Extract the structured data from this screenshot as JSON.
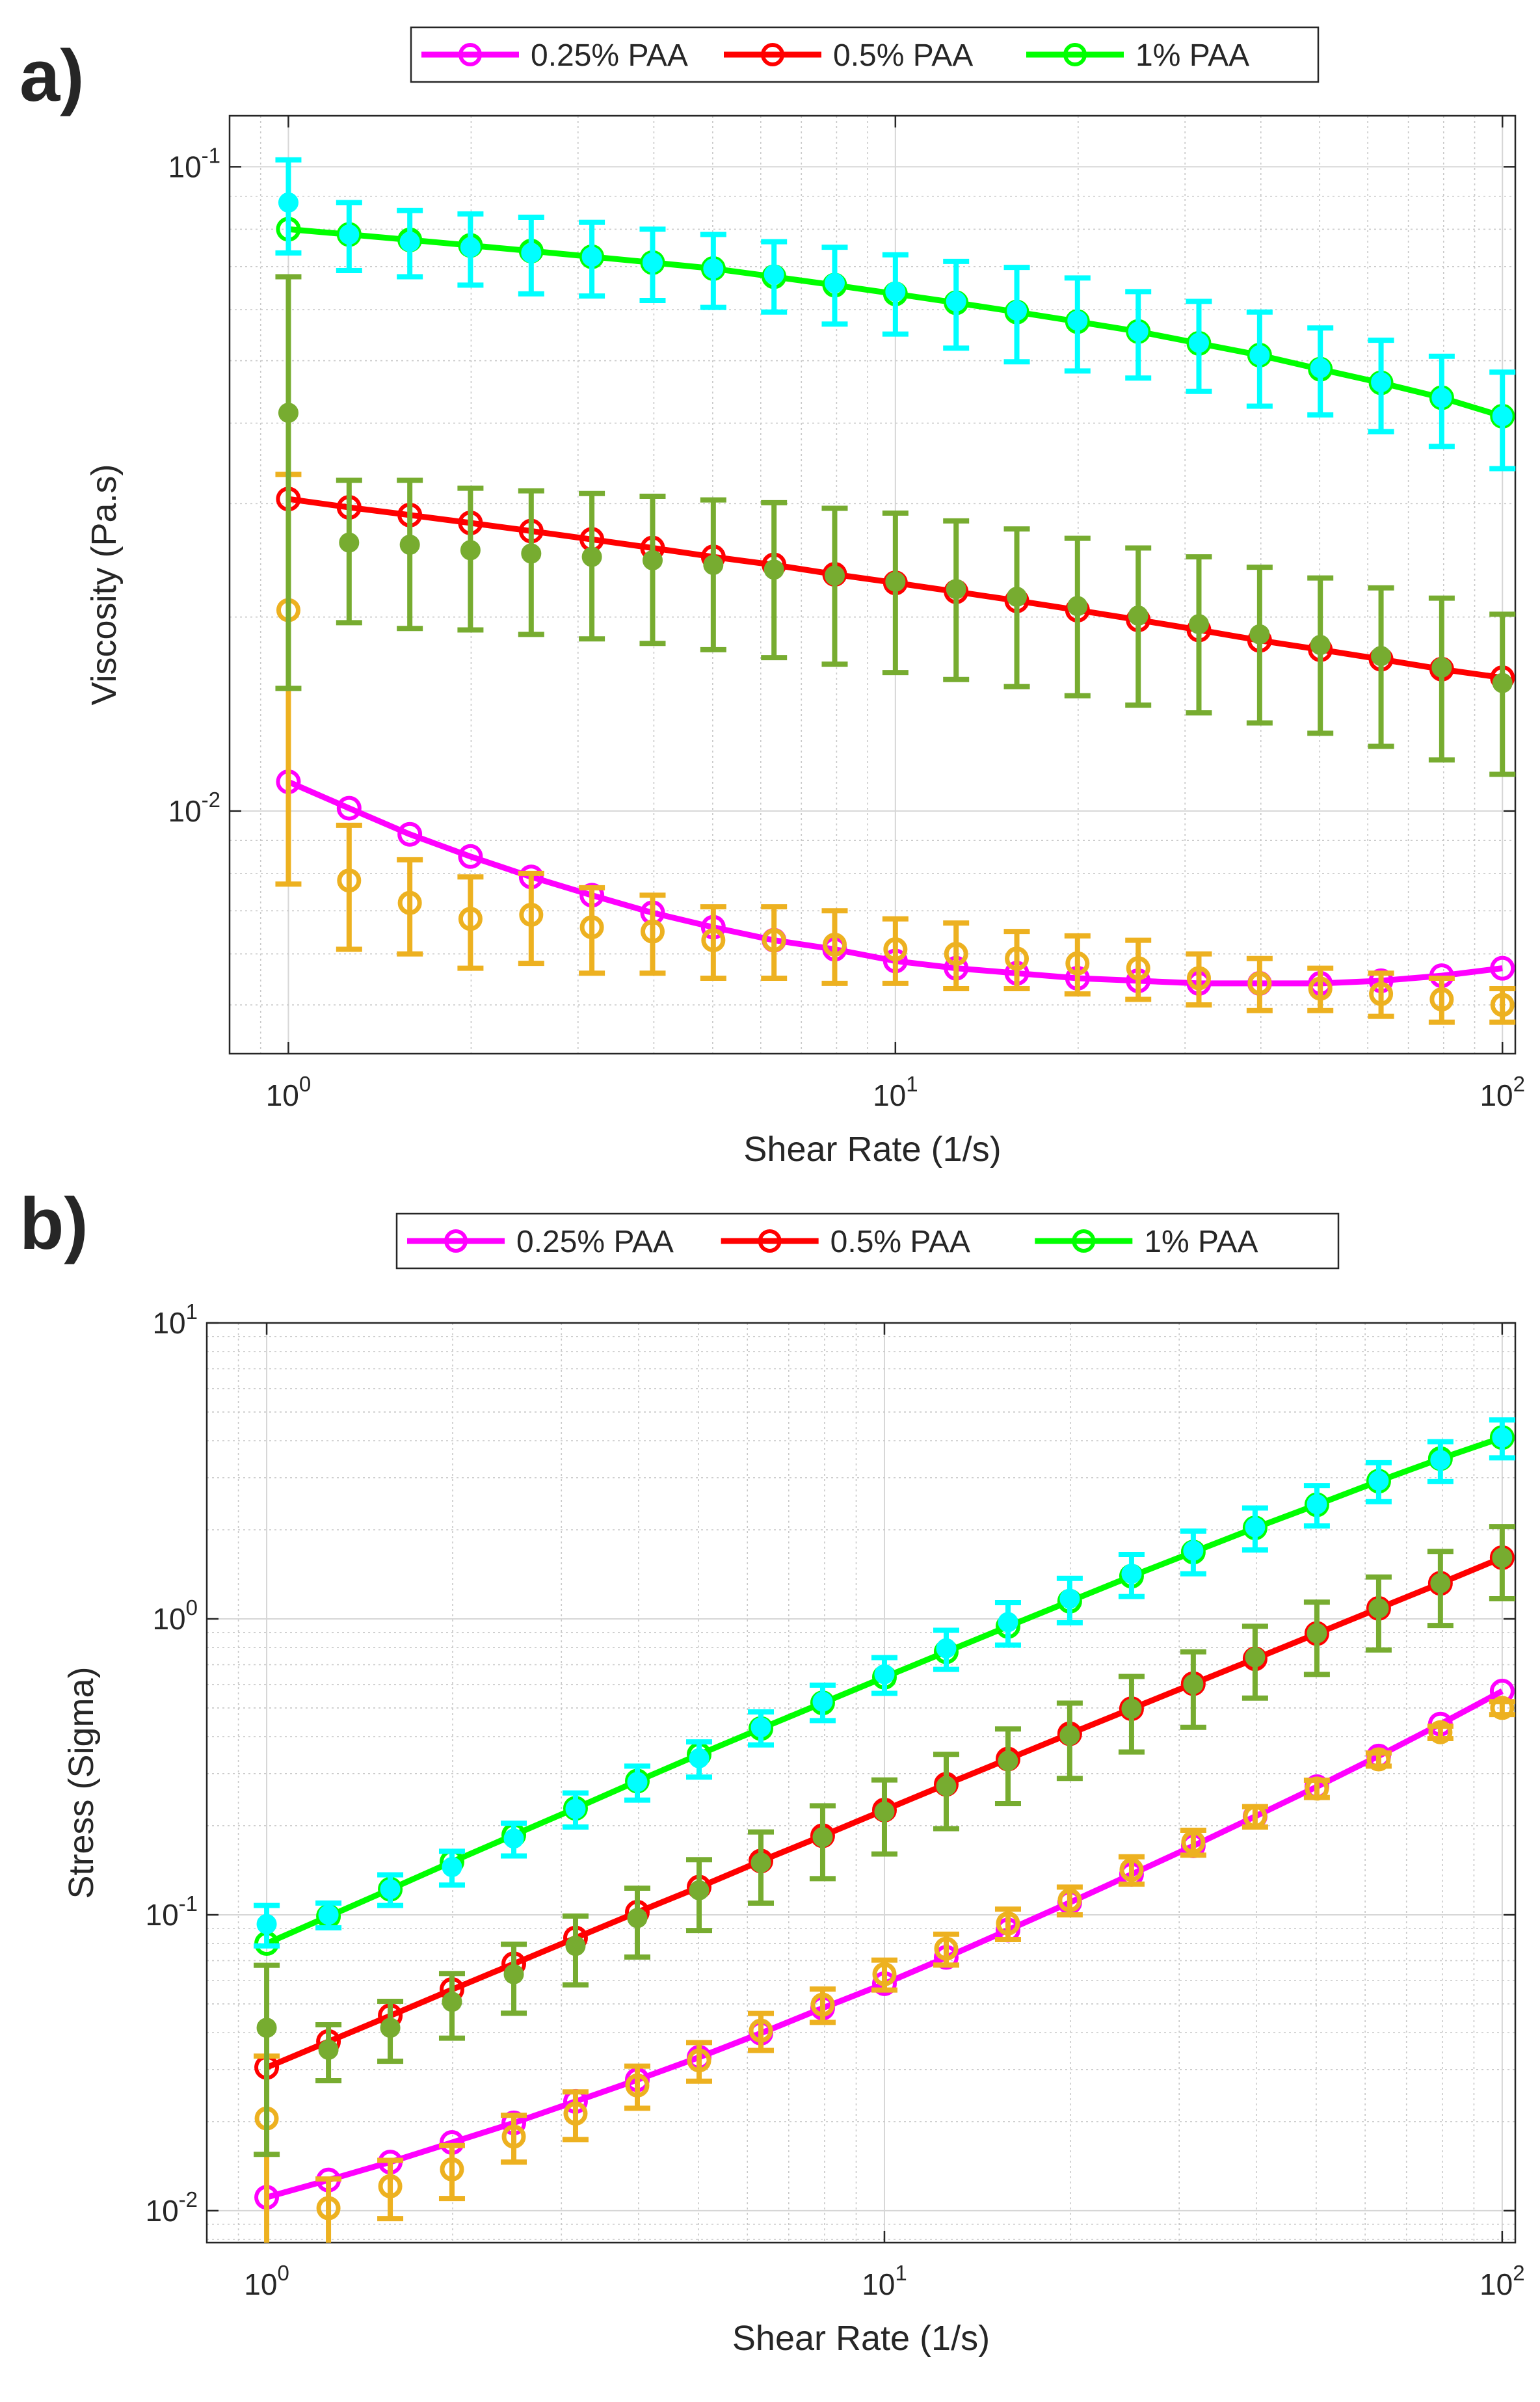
{
  "panels": [
    {
      "letter": "a)",
      "chart_data": {
        "type": "line",
        "xlabel": "Shear Rate (1/s)",
        "ylabel": "Viscosity (Pa.s)",
        "xscale": "log",
        "yscale": "log",
        "xlim": [
          0.8,
          105
        ],
        "ylim": [
          0.0042,
          0.12
        ],
        "xticks": [
          "10^0",
          "10^1",
          "10^2"
        ],
        "yticks": [
          "10^-2",
          "10^-1"
        ],
        "grid": true,
        "legend_position": "top",
        "legend": [
          "0.25% PAA",
          "0.5% PAA",
          "1% PAA"
        ],
        "x": [
          1.0,
          1.259,
          1.585,
          1.995,
          2.512,
          3.162,
          3.981,
          5.012,
          6.31,
          7.943,
          10.0,
          12.59,
          15.85,
          19.95,
          25.12,
          31.62,
          39.81,
          50.12,
          63.1,
          79.43,
          100.0
        ],
        "series": [
          {
            "name": "0.25% PAA",
            "kind": "fit",
            "color": "#ff00ff",
            "values": [
              0.0111,
              0.0101,
              0.0092,
              0.0085,
              0.0079,
              0.0074,
              0.00695,
              0.0066,
              0.0063,
              0.0061,
              0.00585,
              0.0057,
              0.0056,
              0.0055,
              0.00545,
              0.0054,
              0.0054,
              0.0054,
              0.00545,
              0.00555,
              0.0057
            ]
          },
          {
            "name": "0.5% PAA",
            "kind": "fit",
            "color": "#ff0000",
            "values": [
              0.0305,
              0.0296,
              0.0288,
              0.028,
              0.0272,
              0.0264,
              0.0256,
              0.0248,
              0.0241,
              0.0233,
              0.0226,
              0.0219,
              0.0212,
              0.0205,
              0.0198,
              0.0191,
              0.0184,
              0.0178,
              0.0172,
              0.0166,
              0.0161
            ]
          },
          {
            "name": "1% PAA",
            "kind": "fit",
            "color": "#00ff00",
            "values": [
              0.08,
              0.0785,
              0.077,
              0.0755,
              0.074,
              0.0725,
              0.071,
              0.0695,
              0.0675,
              0.0655,
              0.0635,
              0.0615,
              0.0595,
              0.0575,
              0.0555,
              0.0532,
              0.051,
              0.0485,
              0.0462,
              0.0438,
              0.041
            ]
          },
          {
            "kind": "measured",
            "color": "#edb120",
            "values": [
              0.0205,
              0.0078,
              0.0072,
              0.0068,
              0.0069,
              0.0066,
              0.0065,
              0.0063,
              0.0063,
              0.0062,
              0.0061,
              0.006,
              0.0059,
              0.0058,
              0.0057,
              0.0055,
              0.0054,
              0.0053,
              0.0052,
              0.0051,
              0.005
            ],
            "err": [
              0.0128,
              0.0017,
              0.0012,
              0.0011,
              0.0011,
              0.001,
              0.0009,
              0.0008,
              0.0008,
              0.0008,
              0.0007,
              0.0007,
              0.0006,
              0.0006,
              0.0006,
              0.0005,
              0.0005,
              0.0004,
              0.0004,
              0.0004,
              0.0003
            ]
          },
          {
            "kind": "measured",
            "color": "#77ac30",
            "values": [
              0.0415,
              0.0261,
              0.0259,
              0.0254,
              0.0251,
              0.0248,
              0.0245,
              0.0241,
              0.0237,
              0.0232,
              0.0227,
              0.0221,
              0.0215,
              0.0208,
              0.0201,
              0.0195,
              0.0188,
              0.0181,
              0.0174,
              0.0167,
              0.0158
            ],
            "err": [
              0.026,
              0.0065,
              0.0067,
              0.0063,
              0.0063,
              0.0063,
              0.0063,
              0.0063,
              0.0064,
              0.0063,
              0.0063,
              0.0061,
              0.0059,
              0.0057,
              0.0055,
              0.0053,
              0.0051,
              0.0049,
              0.0048,
              0.0047,
              0.0044
            ]
          },
          {
            "kind": "measured",
            "color": "#00ffff",
            "values": [
              0.088,
              0.0785,
              0.0765,
              0.075,
              0.0735,
              0.0725,
              0.071,
              0.0695,
              0.068,
              0.066,
              0.064,
              0.0618,
              0.0598,
              0.0577,
              0.0555,
              0.0533,
              0.051,
              0.0487,
              0.0463,
              0.0438,
              0.041
            ],
            "err": [
              0.0145,
              0.0095,
              0.009,
              0.0095,
              0.01,
              0.0095,
              0.009,
              0.009,
              0.0085,
              0.009,
              0.009,
              0.0095,
              0.01,
              0.0095,
              0.0085,
              0.0085,
              0.0085,
              0.0075,
              0.0075,
              0.007,
              0.007
            ]
          }
        ]
      }
    },
    {
      "letter": "b)",
      "chart_data": {
        "type": "line",
        "xlabel": "Shear Rate (1/s)",
        "ylabel": "Stress (Sigma)",
        "xscale": "log",
        "yscale": "log",
        "xlim": [
          0.8,
          105
        ],
        "ylim": [
          0.0078,
          10
        ],
        "xticks": [
          "10^0",
          "10^1",
          "10^2"
        ],
        "yticks": [
          "10^-2",
          "10^-1",
          "10^0",
          "10^1"
        ],
        "grid": true,
        "legend_position": "top",
        "legend": [
          "0.25% PAA",
          "0.5% PAA",
          "1% PAA"
        ],
        "x": [
          1.0,
          1.259,
          1.585,
          1.995,
          2.512,
          3.162,
          3.981,
          5.012,
          6.31,
          7.943,
          10.0,
          12.59,
          15.85,
          19.95,
          25.12,
          31.62,
          39.81,
          50.12,
          63.1,
          79.43,
          100.0
        ],
        "series": [
          {
            "name": "0.25% PAA",
            "kind": "fit",
            "color": "#ff00ff",
            "values": [
              0.0111,
              0.0127,
              0.0146,
              0.017,
              0.0198,
              0.0234,
              0.0277,
              0.033,
              0.0398,
              0.0484,
              0.0585,
              0.0718,
              0.0888,
              0.11,
              0.137,
              0.171,
              0.215,
              0.271,
              0.344,
              0.441,
              0.57
            ]
          },
          {
            "name": "0.5% PAA",
            "kind": "fit",
            "color": "#ff0000",
            "values": [
              0.0305,
              0.0373,
              0.0456,
              0.0559,
              0.0683,
              0.0835,
              0.102,
              0.124,
              0.152,
              0.185,
              0.226,
              0.276,
              0.336,
              0.409,
              0.497,
              0.604,
              0.733,
              0.892,
              1.085,
              1.319,
              1.61
            ]
          },
          {
            "name": "1% PAA",
            "kind": "fit",
            "color": "#00ff00",
            "values": [
              0.08,
              0.0988,
              0.122,
              0.151,
              0.186,
              0.229,
              0.283,
              0.348,
              0.426,
              0.52,
              0.635,
              0.774,
              0.943,
              1.147,
              1.394,
              1.682,
              2.03,
              2.43,
              2.92,
              3.48,
              4.1
            ]
          },
          {
            "kind": "measured",
            "color": "#edb120",
            "values": [
              0.0205,
              0.0102,
              0.0121,
              0.0138,
              0.0178,
              0.0213,
              0.0265,
              0.0322,
              0.0406,
              0.0497,
              0.063,
              0.0768,
              0.0935,
              0.112,
              0.142,
              0.176,
              0.215,
              0.267,
              0.335,
              0.414,
              0.5
            ],
            "err": [
              0.0128,
              0.0026,
              0.0027,
              0.0028,
              0.0032,
              0.0039,
              0.0043,
              0.0048,
              0.0058,
              0.0064,
              0.0073,
              0.0092,
              0.011,
              0.012,
              0.015,
              0.017,
              0.017,
              0.018,
              0.017,
              0.02,
              0.025
            ]
          },
          {
            "kind": "measured",
            "color": "#77ac30",
            "values": [
              0.0415,
              0.035,
              0.0415,
              0.0508,
              0.063,
              0.0785,
              0.0975,
              0.121,
              0.15,
              0.183,
              0.223,
              0.272,
              0.331,
              0.404,
              0.497,
              0.602,
              0.742,
              0.894,
              1.085,
              1.32,
              1.61
            ],
            "err": [
              0.026,
              0.0075,
              0.0095,
              0.0125,
              0.0165,
              0.0205,
              0.0255,
              0.0325,
              0.0405,
              0.0505,
              0.0625,
              0.0765,
              0.0935,
              0.115,
              0.142,
              0.172,
              0.202,
              0.245,
              0.3,
              0.37,
              0.44
            ]
          },
          {
            "kind": "measured",
            "color": "#00ffff",
            "values": [
              0.093,
              0.1,
              0.122,
              0.145,
              0.181,
              0.228,
              0.281,
              0.338,
              0.43,
              0.525,
              0.65,
              0.795,
              0.975,
              1.17,
              1.42,
              1.7,
              2.04,
              2.44,
              2.93,
              3.44,
              4.1
            ],
            "err": [
              0.0145,
              0.0096,
              0.0145,
              0.019,
              0.023,
              0.03,
              0.037,
              0.046,
              0.055,
              0.072,
              0.09,
              0.12,
              0.16,
              0.2,
              0.23,
              0.28,
              0.33,
              0.38,
              0.44,
              0.53,
              0.6
            ]
          }
        ]
      }
    }
  ]
}
